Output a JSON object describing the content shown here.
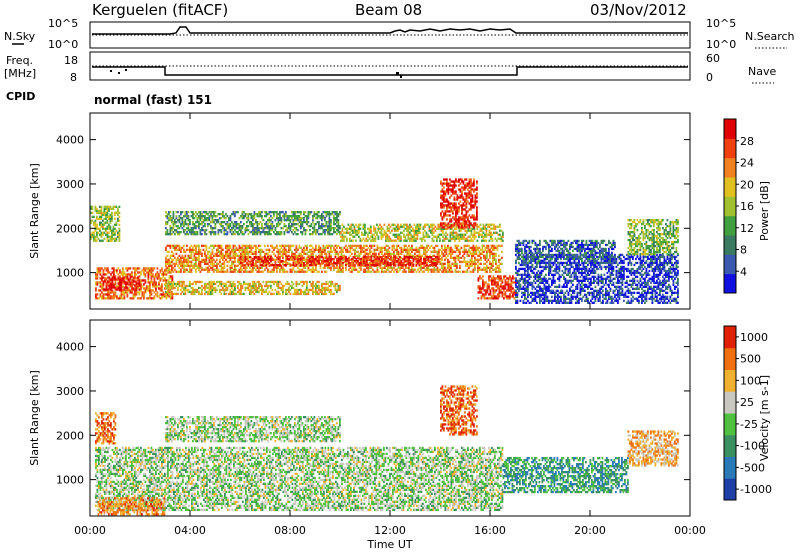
{
  "header": {
    "station": "Kerguelen (fitACF)",
    "beam": "Beam 08",
    "date": "03/Nov/2012"
  },
  "noise_panel": {
    "left_label": "N.Sky",
    "right_label": "N.Search",
    "left_ticks": [
      "10^5",
      "10^0"
    ],
    "right_ticks": [
      "10^5",
      "10^0"
    ]
  },
  "freq_panel": {
    "left_label_line1": "Freq.",
    "left_label_line2": "[MHz]",
    "right_label": "Nave",
    "left_ticks": [
      "18",
      "8"
    ],
    "right_ticks": [
      "60",
      "0"
    ]
  },
  "cpid": {
    "label": "CPID",
    "value": "normal (fast) 151"
  },
  "x_axis": {
    "title": "Time UT",
    "ticks": [
      "00:00",
      "04:00",
      "08:00",
      "12:00",
      "16:00",
      "20:00",
      "00:00"
    ]
  },
  "chart_data": [
    {
      "type": "heatmap",
      "name": "power",
      "ylabel": "Slant Range [km]",
      "ylim": [
        180,
        4600
      ],
      "yticks": [
        "1000",
        "2000",
        "3000",
        "4000"
      ],
      "xlim_hours": [
        0,
        24
      ],
      "colorbar": {
        "label": "Power [dB]",
        "ticks": [
          "4",
          "8",
          "12",
          "16",
          "20",
          "24",
          "28"
        ],
        "colors": [
          "#1010e0",
          "#3a5ab0",
          "#3a7a60",
          "#40a040",
          "#a0c030",
          "#e0c020",
          "#f08020",
          "#f04010",
          "#e00000"
        ]
      },
      "regions": [
        {
          "t0": 0.2,
          "t1": 3.3,
          "r0": 400,
          "r1": 1100,
          "level": 0.75
        },
        {
          "t0": 0.5,
          "t1": 2.0,
          "r0": 600,
          "r1": 900,
          "level": 0.95
        },
        {
          "t0": 3.0,
          "t1": 16.5,
          "r0": 1000,
          "r1": 1600,
          "level": 0.7
        },
        {
          "t0": 6.0,
          "t1": 14.0,
          "r0": 1150,
          "r1": 1350,
          "level": 0.9
        },
        {
          "t0": 3.0,
          "t1": 10.0,
          "r0": 1850,
          "r1": 2350,
          "level": 0.35
        },
        {
          "t0": 10.0,
          "t1": 16.5,
          "r0": 1700,
          "r1": 2100,
          "level": 0.55
        },
        {
          "t0": 14.0,
          "t1": 15.5,
          "r0": 2000,
          "r1": 3100,
          "level": 0.9
        },
        {
          "t0": 15.5,
          "t1": 17.0,
          "r0": 400,
          "r1": 900,
          "level": 0.85
        },
        {
          "t0": 3.0,
          "t1": 10.0,
          "r0": 500,
          "r1": 800,
          "level": 0.6
        },
        {
          "t0": 17.0,
          "t1": 23.5,
          "r0": 300,
          "r1": 1400,
          "level": 0.12
        },
        {
          "t0": 17.0,
          "t1": 21.0,
          "r0": 1200,
          "r1": 1700,
          "level": 0.2
        },
        {
          "t0": 21.5,
          "t1": 23.5,
          "r0": 1400,
          "r1": 2200,
          "level": 0.45
        },
        {
          "t0": 0.0,
          "t1": 1.2,
          "r0": 1700,
          "r1": 2500,
          "level": 0.5
        }
      ]
    },
    {
      "type": "heatmap",
      "name": "velocity",
      "ylabel": "Slant Range [km]",
      "ylim": [
        180,
        4600
      ],
      "yticks": [
        "1000",
        "2000",
        "3000",
        "4000"
      ],
      "xlim_hours": [
        0,
        24
      ],
      "colorbar": {
        "label": "Velocity [m s-1]",
        "ticks": [
          "1000",
          "500",
          "100",
          "25",
          "-25",
          "-100",
          "-500",
          "-1000"
        ],
        "colors": [
          "#1f3fa8",
          "#2a7ab8",
          "#3a9060",
          "#50c040",
          "#c8c8c0",
          "#f0b030",
          "#f07010",
          "#e02000"
        ]
      },
      "regions": [
        {
          "t0": 0.2,
          "t1": 16.5,
          "r0": 300,
          "r1": 1700,
          "level": 0.5
        },
        {
          "t0": 3.0,
          "t1": 10.0,
          "r0": 1850,
          "r1": 2400,
          "level": 0.5
        },
        {
          "t0": 14.0,
          "t1": 15.5,
          "r0": 2000,
          "r1": 3100,
          "level": 0.85
        },
        {
          "t0": 0.2,
          "t1": 1.0,
          "r0": 1800,
          "r1": 2500,
          "level": 0.8
        },
        {
          "t0": 0.3,
          "t1": 3.0,
          "r0": 200,
          "r1": 600,
          "level": 0.75
        },
        {
          "t0": 16.5,
          "t1": 21.5,
          "r0": 700,
          "r1": 1500,
          "level": 0.3
        },
        {
          "t0": 21.5,
          "t1": 23.5,
          "r0": 1300,
          "r1": 2100,
          "level": 0.7
        }
      ]
    }
  ]
}
